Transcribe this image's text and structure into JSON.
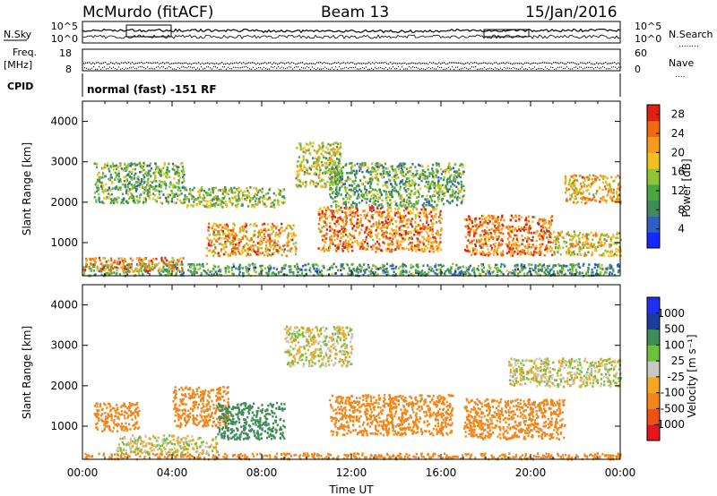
{
  "header": {
    "station": "McMurdo (fitACF)",
    "beam": "Beam 13",
    "date": "15/Jan/2016"
  },
  "noise_panel": {
    "left_label": "N.Sky",
    "right_label": "N.Search",
    "right_dots": "........",
    "ticks_left": [
      "10^5",
      "10^0"
    ],
    "ticks_right": [
      "10^5",
      "10^0"
    ]
  },
  "freq_panel": {
    "label_line1": "Freq.",
    "label_line2": "[MHz]",
    "right_label": "Nave",
    "right_dots": "....",
    "ticks_left": [
      "18",
      "8"
    ],
    "ticks_right": [
      "60",
      "0"
    ]
  },
  "cpid": {
    "label": "CPID",
    "text": "normal (fast) -151 RF"
  },
  "colors": {
    "power_scale": [
      "#1428ff",
      "#2f5fc0",
      "#3e8c58",
      "#49a640",
      "#8fc43a",
      "#f2c020",
      "#f59a1a",
      "#f06a10",
      "#e02010"
    ],
    "velocity_scale": [
      "#e8141e",
      "#ee5016",
      "#f2861a",
      "#f5a623",
      "#c8c8c0",
      "#6cc03c",
      "#3e8c58",
      "#1e3ca0",
      "#2030f0"
    ]
  },
  "chart_data": [
    {
      "type": "heatmap",
      "panel": "power",
      "ylabel": "Slant Range [km]",
      "ylim": [
        180,
        4500
      ],
      "yticks": [
        "1000",
        "2000",
        "3000",
        "4000"
      ],
      "xlim": [
        "00:00",
        "24:00"
      ],
      "xticks": [
        "00:00",
        "04:00",
        "08:00",
        "12:00",
        "16:00",
        "20:00",
        "00:00"
      ],
      "colorbar": {
        "label": "Power [dB]",
        "ticks": [
          "4",
          "8",
          "12",
          "16",
          "20",
          "24",
          "28"
        ],
        "range": [
          0,
          30
        ]
      },
      "echo_regions": [
        {
          "t_start": 0.0,
          "t_end": 24.0,
          "range_low": 180,
          "range_high": 500,
          "power": 10
        },
        {
          "t_start": 0.0,
          "t_end": 4.5,
          "range_low": 300,
          "range_high": 650,
          "power": 22
        },
        {
          "t_start": 0.5,
          "t_end": 4.5,
          "range_low": 2000,
          "range_high": 3000,
          "power": 12
        },
        {
          "t_start": 4.5,
          "t_end": 9.0,
          "range_low": 1900,
          "range_high": 2400,
          "power": 14
        },
        {
          "t_start": 5.5,
          "t_end": 9.5,
          "range_low": 700,
          "range_high": 1500,
          "power": 22
        },
        {
          "t_start": 9.5,
          "t_end": 11.5,
          "range_low": 2400,
          "range_high": 3500,
          "power": 16
        },
        {
          "t_start": 10.5,
          "t_end": 16.0,
          "range_low": 800,
          "range_high": 1900,
          "power": 23
        },
        {
          "t_start": 11.0,
          "t_end": 17.0,
          "range_low": 1900,
          "range_high": 3000,
          "power": 12
        },
        {
          "t_start": 17.0,
          "t_end": 21.0,
          "range_low": 700,
          "range_high": 1700,
          "power": 24
        },
        {
          "t_start": 21.0,
          "t_end": 24.0,
          "range_low": 700,
          "range_high": 1300,
          "power": 18
        },
        {
          "t_start": 21.5,
          "t_end": 24.0,
          "range_low": 2000,
          "range_high": 2700,
          "power": 20
        }
      ]
    },
    {
      "type": "heatmap",
      "panel": "velocity",
      "ylabel": "Slant Range [km]",
      "xlabel": "Time UT",
      "ylim": [
        180,
        4500
      ],
      "yticks": [
        "1000",
        "2000",
        "3000",
        "4000"
      ],
      "xlim": [
        "00:00",
        "24:00"
      ],
      "xticks": [
        "00:00",
        "04:00",
        "08:00",
        "12:00",
        "16:00",
        "20:00",
        "00:00"
      ],
      "colorbar": {
        "label": "Velocity [m s⁻¹]",
        "ticks": [
          "1000",
          "500",
          "100",
          "25",
          "-25",
          "-100",
          "-500",
          "-1000"
        ]
      },
      "echo_regions": [
        {
          "t_start": 0.0,
          "t_end": 24.0,
          "range_low": 180,
          "range_high": 350,
          "velocity": -300
        },
        {
          "t_start": 1.5,
          "t_end": 6.0,
          "range_low": 350,
          "range_high": 800,
          "velocity": 0
        },
        {
          "t_start": 0.5,
          "t_end": 2.5,
          "range_low": 900,
          "range_high": 1600,
          "velocity": -400
        },
        {
          "t_start": 4.0,
          "t_end": 6.5,
          "range_low": 1000,
          "range_high": 2000,
          "velocity": -300
        },
        {
          "t_start": 6.0,
          "t_end": 9.0,
          "range_low": 700,
          "range_high": 1600,
          "velocity": 300
        },
        {
          "t_start": 9.0,
          "t_end": 12.0,
          "range_low": 2500,
          "range_high": 3500,
          "velocity": 0
        },
        {
          "t_start": 11.0,
          "t_end": 16.5,
          "range_low": 800,
          "range_high": 1800,
          "velocity": -300
        },
        {
          "t_start": 17.0,
          "t_end": 21.5,
          "range_low": 700,
          "range_high": 1700,
          "velocity": -300
        },
        {
          "t_start": 19.0,
          "t_end": 24.0,
          "range_low": 2000,
          "range_high": 2700,
          "velocity": 0
        }
      ]
    }
  ]
}
